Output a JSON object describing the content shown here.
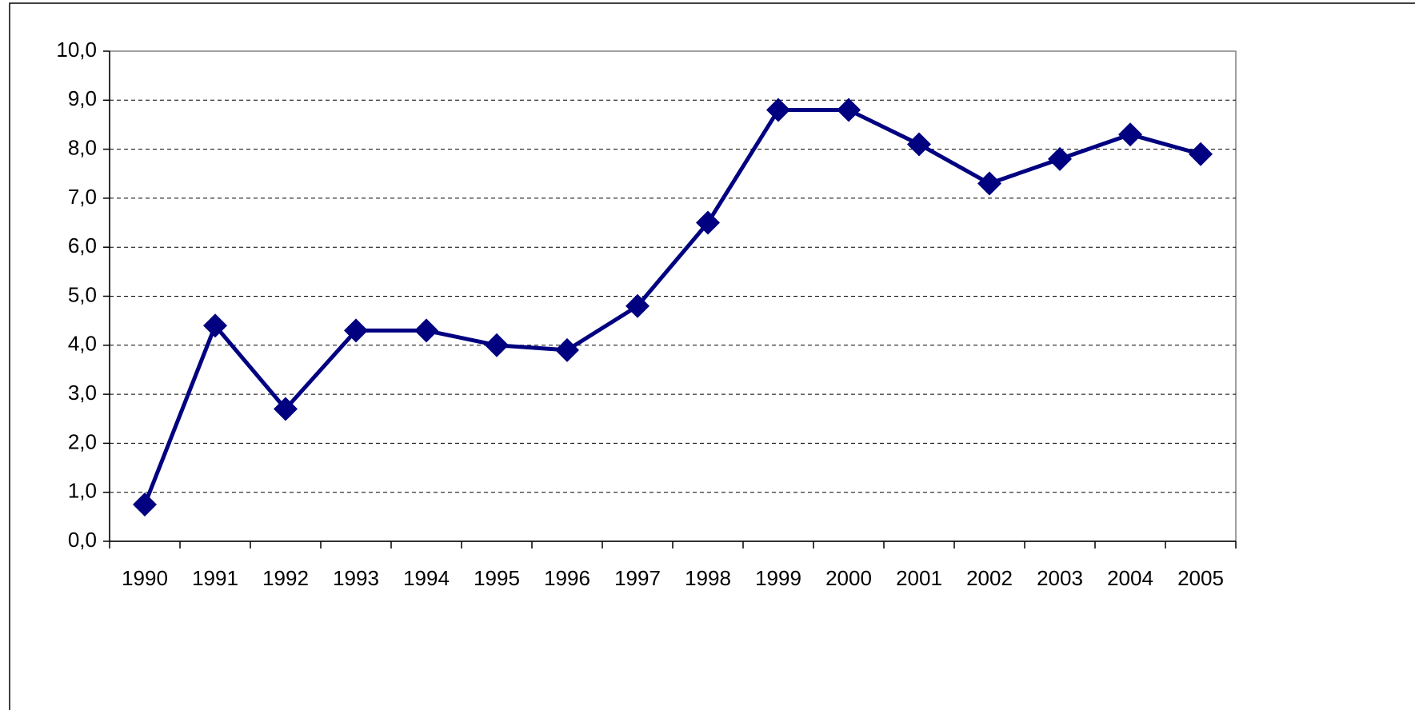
{
  "chart_data": {
    "type": "line",
    "categories": [
      "1990",
      "1991",
      "1992",
      "1993",
      "1994",
      "1995",
      "1996",
      "1997",
      "1998",
      "1999",
      "2000",
      "2001",
      "2002",
      "2003",
      "2004",
      "2005"
    ],
    "series": [
      {
        "color": "#000080",
        "values": [
          0.75,
          4.4,
          2.7,
          4.3,
          4.3,
          4.0,
          3.9,
          4.8,
          6.5,
          8.8,
          8.8,
          8.1,
          7.3,
          7.8,
          8.3,
          7.9
        ]
      }
    ],
    "ylim": [
      0,
      10
    ],
    "yticks": [
      {
        "value": 0,
        "label": "0,0"
      },
      {
        "value": 1,
        "label": "1,0"
      },
      {
        "value": 2,
        "label": "2,0"
      },
      {
        "value": 3,
        "label": "3,0"
      },
      {
        "value": 4,
        "label": "4,0"
      },
      {
        "value": 5,
        "label": "5,0"
      },
      {
        "value": 6,
        "label": "6,0"
      },
      {
        "value": 7,
        "label": "7,0"
      },
      {
        "value": 8,
        "label": "8,0"
      },
      {
        "value": 9,
        "label": "9,0"
      },
      {
        "value": 10,
        "label": "10,0"
      }
    ],
    "grid": true,
    "marker": "diamond"
  }
}
